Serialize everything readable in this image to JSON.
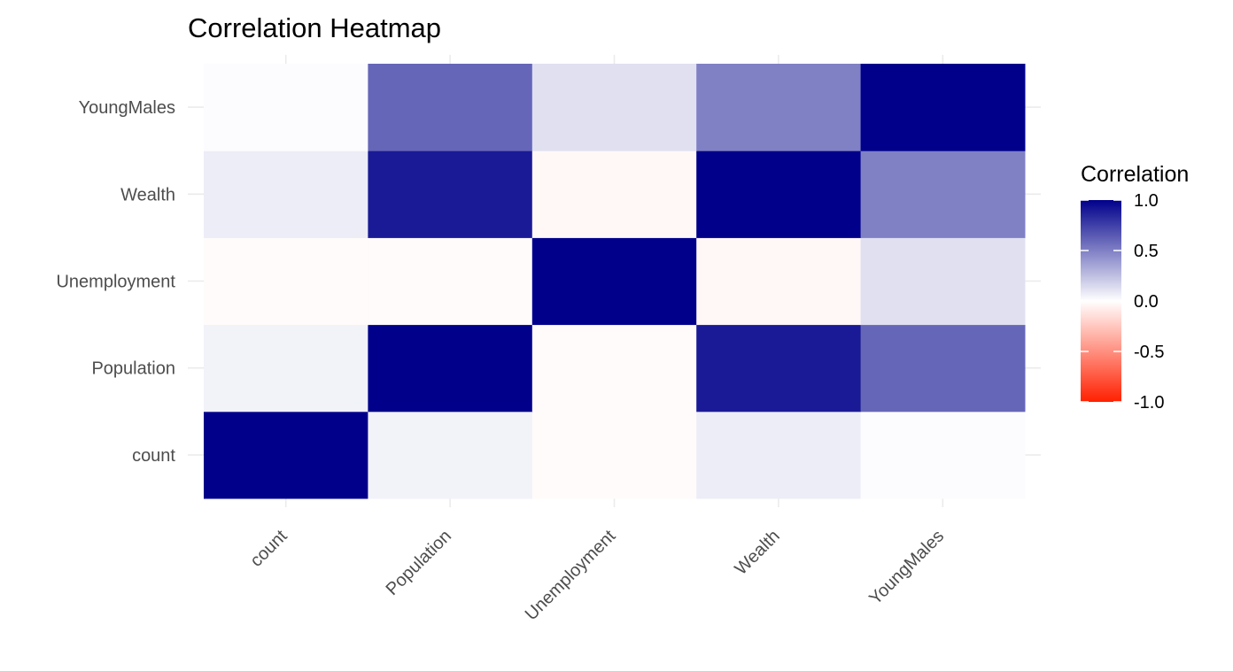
{
  "chart_data": {
    "type": "heatmap",
    "title": "Correlation Heatmap",
    "xlabel": "",
    "ylabel": "",
    "x_categories": [
      "count",
      "Population",
      "Unemployment",
      "Wealth",
      "YoungMales"
    ],
    "y_categories": [
      "count",
      "Population",
      "Unemployment",
      "Wealth",
      "YoungMales"
    ],
    "values": [
      [
        1.0,
        0.05,
        -0.02,
        0.07,
        0.01
      ],
      [
        0.05,
        1.0,
        -0.02,
        0.9,
        0.6
      ],
      [
        -0.02,
        -0.02,
        1.0,
        -0.03,
        0.12
      ],
      [
        0.07,
        0.9,
        -0.03,
        1.0,
        0.5
      ],
      [
        0.01,
        0.6,
        0.12,
        0.5,
        1.0
      ]
    ],
    "legend": {
      "title": "Correlation",
      "position": "right",
      "range": [
        -1.0,
        1.0
      ],
      "breaks": [
        1.0,
        0.5,
        0.0,
        -0.5,
        -1.0
      ],
      "break_labels": [
        "1.0",
        "0.5",
        "0.0",
        "-0.5",
        "-1.0"
      ],
      "colors": {
        "low": "#ff2000",
        "mid": "#ffffff",
        "high": "#00008b"
      }
    },
    "grid": true
  }
}
